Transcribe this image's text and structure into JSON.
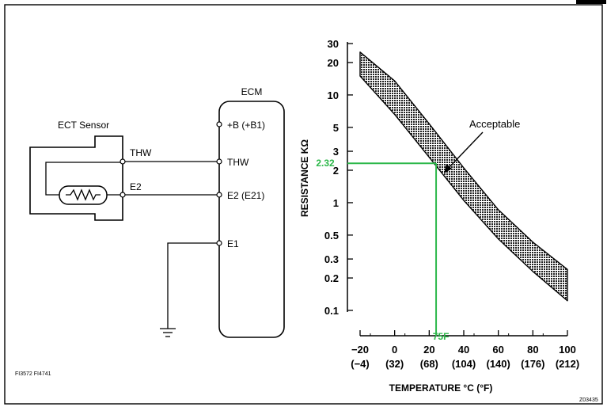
{
  "circuit": {
    "sensor_label": "ECT Sensor",
    "ecm_label": "ECM",
    "wire_thw": "THW",
    "wire_e2": "E2",
    "pin_b": "+B (+B1)",
    "pin_thw": "THW",
    "pin_e2": "E2 (E21)",
    "pin_e1": "E1",
    "figure_codes": "FI3572 FI4741"
  },
  "chart_data": {
    "type": "line",
    "title": "",
    "ylabel": "RESISTANCE KΩ",
    "xlabel": "TEMPERATURE °C (°F)",
    "y_scale": "log",
    "ylim": [
      0.1,
      30
    ],
    "xlim": [
      -20,
      100
    ],
    "x_ticks_c": [
      "−20",
      "0",
      "20",
      "40",
      "60",
      "80",
      "100"
    ],
    "x_ticks_f": [
      "(−4)",
      "(32)",
      "(68)",
      "(104)",
      "(140)",
      "(176)",
      "(212)"
    ],
    "y_ticks": [
      "30",
      "20",
      "10",
      "5",
      "3",
      "2",
      "1",
      "0.5",
      "0.3",
      "0.2",
      "0.1"
    ],
    "band_upper": {
      "x": [
        -20,
        0,
        20,
        40,
        60,
        80,
        100
      ],
      "y": [
        25,
        13.5,
        5.4,
        2.1,
        0.86,
        0.43,
        0.24
      ]
    },
    "band_lower": {
      "x": [
        -20,
        0,
        20,
        40,
        60,
        80,
        100
      ],
      "y": [
        15,
        6.6,
        2.64,
        1.05,
        0.46,
        0.23,
        0.123
      ]
    },
    "band_label": "Acceptable",
    "band_color": "#2b2b2b",
    "reading": {
      "x_c": 24,
      "y_kohm": 2.32,
      "y_label": "2.32",
      "x_label": "75F",
      "color": "#2db84a"
    },
    "image_code": "Z03435"
  }
}
